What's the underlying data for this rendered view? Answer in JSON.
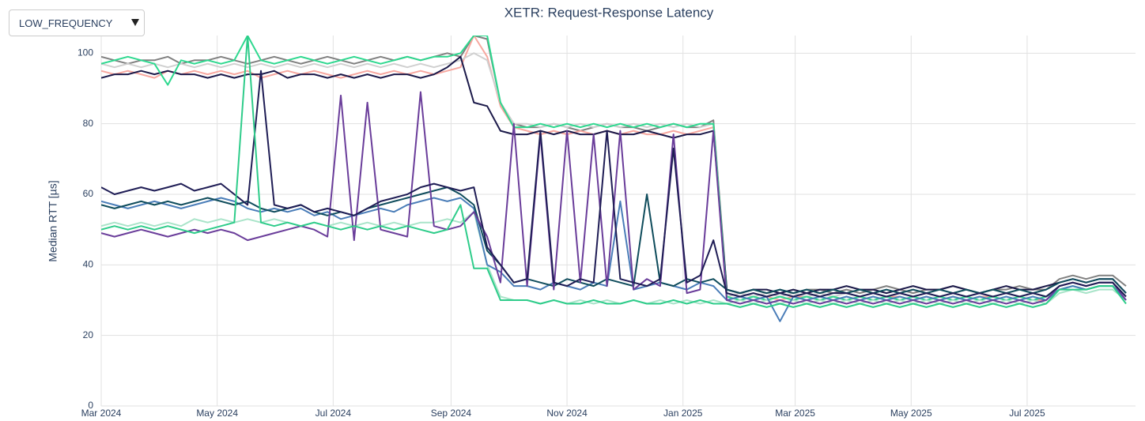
{
  "dropdown": {
    "label": "LOW_FREQUENCY"
  },
  "chart_data": {
    "type": "line",
    "title": "XETR: Request-Response Latency",
    "y_label": "Median RTT [µs]",
    "x": [
      "2024-03-01",
      "2024-03-08",
      "2024-03-15",
      "2024-03-22",
      "2024-03-29",
      "2024-04-05",
      "2024-04-12",
      "2024-04-19",
      "2024-04-26",
      "2024-05-03",
      "2024-05-10",
      "2024-05-17",
      "2024-05-24",
      "2024-05-31",
      "2024-06-07",
      "2024-06-14",
      "2024-06-21",
      "2024-06-28",
      "2024-07-05",
      "2024-07-12",
      "2024-07-19",
      "2024-07-26",
      "2024-08-02",
      "2024-08-09",
      "2024-08-16",
      "2024-08-23",
      "2024-08-30",
      "2024-09-06",
      "2024-09-13",
      "2024-09-20",
      "2024-09-27",
      "2024-10-04",
      "2024-10-11",
      "2024-10-18",
      "2024-10-25",
      "2024-11-01",
      "2024-11-08",
      "2024-11-15",
      "2024-11-22",
      "2024-11-29",
      "2024-12-06",
      "2024-12-13",
      "2024-12-20",
      "2024-12-27",
      "2025-01-03",
      "2025-01-10",
      "2025-01-17",
      "2025-01-24",
      "2025-01-31",
      "2025-02-07",
      "2025-02-14",
      "2025-02-21",
      "2025-02-28",
      "2025-03-07",
      "2025-03-14",
      "2025-03-21",
      "2025-03-28",
      "2025-04-04",
      "2025-04-11",
      "2025-04-18",
      "2025-04-25",
      "2025-05-02",
      "2025-05-09",
      "2025-05-16",
      "2025-05-23",
      "2025-05-30",
      "2025-06-06",
      "2025-06-13",
      "2025-06-20",
      "2025-06-27",
      "2025-07-04",
      "2025-07-11",
      "2025-07-18",
      "2025-07-25",
      "2025-08-01",
      "2025-08-08",
      "2025-08-15",
      "2025-08-22"
    ],
    "xlim": [
      "2024-03-01",
      "2025-08-27"
    ],
    "xticks": [
      {
        "value": "2024-03-01",
        "label": "Mar 2024"
      },
      {
        "value": "2024-05-01",
        "label": "May 2024"
      },
      {
        "value": "2024-07-01",
        "label": "Jul 2024"
      },
      {
        "value": "2024-09-01",
        "label": "Sep 2024"
      },
      {
        "value": "2024-11-01",
        "label": "Nov 2024"
      },
      {
        "value": "2025-01-01",
        "label": "Jan 2025"
      },
      {
        "value": "2025-03-01",
        "label": "Mar 2025"
      },
      {
        "value": "2025-05-01",
        "label": "May 2025"
      },
      {
        "value": "2025-07-01",
        "label": "Jul 2025"
      }
    ],
    "ylim": [
      0,
      105
    ],
    "yticks": [
      0,
      20,
      40,
      60,
      80,
      100
    ],
    "grid": true,
    "series": [
      {
        "color": "#808080",
        "values": [
          99,
          98,
          97,
          98,
          98,
          99,
          97,
          98,
          98,
          99,
          98,
          97,
          98,
          99,
          98,
          97,
          98,
          99,
          98,
          97,
          98,
          99,
          98,
          99,
          98,
          99,
          100,
          99,
          105,
          104,
          86,
          80,
          79,
          79,
          80,
          79,
          78,
          79,
          80,
          79,
          79,
          78,
          79,
          80,
          79,
          79,
          81,
          33,
          32,
          33,
          32,
          33,
          32,
          33,
          33,
          32,
          33,
          32,
          33,
          34,
          33,
          32,
          33,
          33,
          34,
          33,
          32,
          33,
          33,
          34,
          33,
          33,
          36,
          37,
          36,
          37,
          37,
          34
        ]
      },
      {
        "color": "#f7a8a0",
        "values": [
          95,
          94,
          95,
          94,
          93,
          95,
          94,
          95,
          94,
          95,
          94,
          95,
          93,
          94,
          95,
          94,
          95,
          94,
          93,
          94,
          95,
          94,
          95,
          94,
          95,
          94,
          95,
          96,
          105,
          99,
          85,
          79,
          78,
          77,
          78,
          77,
          78,
          77,
          78,
          77,
          78,
          77,
          77,
          78,
          77,
          78,
          79,
          30,
          31,
          30,
          31,
          30,
          31,
          31,
          30,
          31,
          30,
          31,
          30,
          31,
          31,
          30,
          31,
          30,
          31,
          30,
          31,
          31,
          30,
          31,
          30,
          30,
          34,
          35,
          34,
          35,
          35,
          31
        ]
      },
      {
        "color": "#d0d0d0",
        "values": [
          97,
          96,
          97,
          96,
          97,
          96,
          97,
          96,
          97,
          96,
          97,
          96,
          97,
          96,
          97,
          96,
          97,
          96,
          97,
          96,
          97,
          96,
          97,
          96,
          97,
          96,
          97,
          98,
          100,
          98,
          86,
          80,
          80,
          79,
          80,
          79,
          80,
          79,
          80,
          79,
          80,
          79,
          80,
          79,
          80,
          79,
          80,
          31,
          32,
          31,
          32,
          31,
          32,
          31,
          32,
          31,
          32,
          31,
          32,
          31,
          32,
          31,
          32,
          31,
          32,
          31,
          32,
          31,
          32,
          31,
          32,
          31,
          34,
          35,
          34,
          35,
          35,
          31
        ]
      },
      {
        "color": "#1c1a4a",
        "values": [
          93,
          94,
          94,
          95,
          94,
          95,
          94,
          94,
          93,
          94,
          93,
          94,
          94,
          95,
          93,
          94,
          94,
          93,
          94,
          93,
          94,
          93,
          94,
          94,
          93,
          94,
          96,
          99,
          86,
          85,
          78,
          77,
          77,
          78,
          77,
          78,
          77,
          77,
          78,
          77,
          77,
          78,
          77,
          76,
          77,
          77,
          78,
          33,
          32,
          33,
          33,
          32,
          33,
          32,
          33,
          33,
          34,
          33,
          33,
          32,
          33,
          34,
          33,
          33,
          34,
          33,
          32,
          33,
          34,
          33,
          33,
          34,
          35,
          36,
          35,
          36,
          36,
          32
        ]
      },
      {
        "color": "#2ed88f",
        "values": [
          97,
          98,
          99,
          98,
          97,
          91,
          98,
          97,
          98,
          97,
          98,
          105,
          98,
          97,
          98,
          99,
          98,
          97,
          98,
          99,
          98,
          97,
          98,
          99,
          98,
          99,
          99,
          100,
          105,
          105,
          86,
          79,
          79,
          80,
          79,
          80,
          79,
          80,
          79,
          80,
          79,
          80,
          79,
          80,
          79,
          80,
          80,
          31,
          30,
          31,
          30,
          31,
          30,
          31,
          30,
          31,
          30,
          31,
          30,
          31,
          30,
          31,
          30,
          31,
          30,
          31,
          30,
          31,
          30,
          31,
          30,
          31,
          33,
          34,
          33,
          34,
          34,
          30
        ]
      },
      {
        "color": "#a9e4c9",
        "values": [
          51,
          52,
          51,
          52,
          51,
          52,
          51,
          53,
          52,
          53,
          52,
          53,
          52,
          53,
          52,
          51,
          52,
          51,
          52,
          51,
          52,
          51,
          52,
          51,
          52,
          52,
          53,
          52,
          55,
          40,
          31,
          30,
          30,
          29,
          30,
          29,
          30,
          29,
          30,
          29,
          30,
          29,
          30,
          29,
          30,
          29,
          30,
          29,
          30,
          29,
          30,
          29,
          30,
          29,
          30,
          29,
          30,
          29,
          30,
          29,
          30,
          29,
          30,
          29,
          30,
          29,
          30,
          29,
          30,
          29,
          30,
          29,
          32,
          33,
          32,
          33,
          33,
          30
        ]
      },
      {
        "color": "#4a7db8",
        "values": [
          58,
          57,
          56,
          57,
          58,
          57,
          56,
          57,
          58,
          59,
          58,
          56,
          55,
          56,
          55,
          56,
          54,
          55,
          53,
          54,
          55,
          56,
          55,
          57,
          58,
          59,
          58,
          59,
          56,
          40,
          38,
          34,
          34,
          33,
          35,
          34,
          33,
          35,
          34,
          58,
          33,
          34,
          35,
          34,
          33,
          35,
          34,
          30,
          31,
          30,
          31,
          24,
          31,
          30,
          31,
          30,
          31,
          30,
          31,
          30,
          31,
          30,
          31,
          30,
          31,
          30,
          31,
          30,
          31,
          30,
          31,
          30,
          33,
          34,
          33,
          34,
          34,
          30
        ]
      },
      {
        "color": "#0f4c5c",
        "values": [
          57,
          56,
          57,
          58,
          57,
          58,
          57,
          58,
          59,
          58,
          57,
          58,
          56,
          55,
          56,
          57,
          55,
          54,
          55,
          54,
          56,
          57,
          58,
          59,
          60,
          61,
          62,
          60,
          57,
          44,
          40,
          35,
          36,
          35,
          34,
          36,
          35,
          34,
          36,
          35,
          34,
          60,
          35,
          34,
          36,
          35,
          36,
          33,
          32,
          33,
          32,
          33,
          32,
          33,
          32,
          33,
          32,
          33,
          32,
          33,
          32,
          33,
          32,
          33,
          32,
          33,
          32,
          33,
          32,
          33,
          32,
          33,
          35,
          36,
          35,
          36,
          36,
          32
        ]
      },
      {
        "color": "#6a3d9a",
        "values": [
          49,
          48,
          49,
          50,
          49,
          48,
          49,
          50,
          49,
          50,
          49,
          47,
          48,
          49,
          50,
          51,
          50,
          48,
          88,
          47,
          86,
          50,
          49,
          48,
          89,
          51,
          50,
          51,
          55,
          48,
          35,
          80,
          34,
          77,
          33,
          78,
          35,
          77,
          34,
          78,
          33,
          36,
          34,
          77,
          32,
          33,
          78,
          30,
          29,
          30,
          29,
          30,
          29,
          30,
          29,
          30,
          29,
          30,
          29,
          30,
          29,
          30,
          29,
          30,
          29,
          30,
          29,
          30,
          29,
          30,
          29,
          30,
          34,
          35,
          34,
          35,
          35,
          30
        ]
      },
      {
        "color": "#1f1d55",
        "values": [
          62,
          60,
          61,
          62,
          61,
          62,
          63,
          61,
          62,
          63,
          60,
          57,
          95,
          57,
          56,
          57,
          55,
          56,
          55,
          54,
          56,
          58,
          59,
          60,
          62,
          63,
          62,
          61,
          62,
          45,
          40,
          35,
          36,
          78,
          35,
          34,
          36,
          35,
          78,
          36,
          35,
          34,
          36,
          73,
          35,
          37,
          47,
          32,
          31,
          32,
          31,
          32,
          31,
          32,
          31,
          32,
          32,
          31,
          32,
          31,
          32,
          31,
          32,
          31,
          32,
          31,
          32,
          31,
          32,
          31,
          32,
          31,
          34,
          35,
          34,
          35,
          35,
          31
        ]
      },
      {
        "color": "#2ecc8a",
        "values": [
          50,
          51,
          50,
          51,
          50,
          51,
          50,
          49,
          50,
          51,
          52,
          105,
          52,
          51,
          52,
          51,
          52,
          51,
          50,
          51,
          50,
          51,
          50,
          51,
          50,
          49,
          50,
          57,
          39,
          39,
          30,
          30,
          30,
          29,
          30,
          29,
          29,
          30,
          29,
          29,
          30,
          29,
          29,
          30,
          29,
          30,
          29,
          29,
          28,
          29,
          28,
          29,
          28,
          29,
          28,
          29,
          28,
          29,
          28,
          29,
          28,
          29,
          28,
          29,
          28,
          29,
          28,
          29,
          28,
          29,
          28,
          29,
          33,
          33,
          33,
          34,
          34,
          29
        ]
      }
    ]
  }
}
